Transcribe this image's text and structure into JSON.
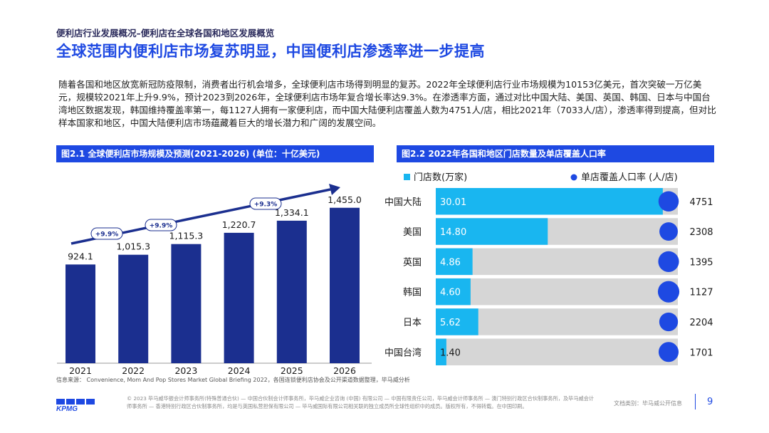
{
  "header": {
    "breadcrumb": "便利店行业发展概况–便利店在全球各国和地区发展概览",
    "title": "全球范围内便利店市场复苏明显，中国便利店渗透率进一步提高"
  },
  "intro": {
    "text": "随着各国和地区放宽新冠防疫限制，消费者出行机会增多，全球便利店市场得到明显的复苏。2022年全球便利店行业市场规模为10153亿美元，首次突破一万亿美元，规模较2021年上升9.9%，预计2023到2026年，全球便利店市场年复合增长率达9.3%。在渗透率方面，通过对比中国大陆、美国、英国、韩国、日本与中国台湾地区数据发现，韩国维持覆盖率第一，每1127人拥有一家便利店，而中国大陆便利店覆盖人数为4751人/店，相比2021年（7033人/店），渗透率得到提高，但对比样本国家和地区，中国大陆便利店市场蕴藏着巨大的增长潜力和广阔的发展空间。"
  },
  "chart_data": [
    {
      "type": "bar",
      "title": "图2.1 全球便利店市场规模及预测(2021-2026) (单位：十亿美元)",
      "categories": [
        "2021",
        "2022",
        "2023",
        "2024",
        "2025",
        "2026"
      ],
      "values": [
        924.1,
        1015.3,
        1115.3,
        1220.7,
        1334.1,
        1455.0
      ],
      "value_labels": [
        "924.1",
        "1,015.3",
        "1,115.3",
        "1,220.7",
        "1,334.1",
        "1,455.0"
      ],
      "growth_labels": [
        "+9.9%",
        "+9.9%",
        "+9.3%"
      ],
      "xlabel": "",
      "ylabel": "",
      "ylim": [
        0,
        1500
      ],
      "colors": {
        "bar": "#1b2f8f",
        "arrow": "#1b2f8f"
      }
    },
    {
      "type": "bar",
      "orientation": "horizontal",
      "title": "图2.2 2022年各国和地区门店数量及单店覆盖人口率",
      "categories": [
        "中国大陆",
        "美国",
        "英国",
        "韩国",
        "日本",
        "中国台湾"
      ],
      "series": [
        {
          "name": "门店数(万家)",
          "values": [
            30.01,
            14.8,
            4.86,
            4.6,
            5.62,
            1.4
          ],
          "labels": [
            "30.01",
            "14.80",
            "4.86",
            "4.60",
            "5.62",
            "1.40"
          ]
        },
        {
          "name": "单店覆盖人口率 (人/店)",
          "values": [
            4751,
            2308,
            1395,
            1127,
            2204,
            1701
          ],
          "labels": [
            "4751",
            "2308",
            "1395",
            "1127",
            "2204",
            "1701"
          ]
        }
      ],
      "xlim": [
        0,
        32
      ],
      "colors": {
        "stores": "#19b6f0",
        "track": "#d6d6d6",
        "coverage": "#1e49e2"
      }
    }
  ],
  "source": {
    "text": "信息来源： Convenience, Mom And Pop Stores Market Global Briefing 2022，各国连锁便利店协会及公开渠道数据整理，毕马威分析"
  },
  "footer": {
    "logo_text": "KPMG",
    "legal": "© 2023 毕马威华振会计师事务所(特殊普通合伙) — 中国合伙制会计师事务所，毕马威企业咨询 (中国) 有限公司 — 中国有限责任公司，毕马威会计师事务所 — 澳门特别行政区合伙制事务所，及毕马威会计师事务所 — 香港特别行政区合伙制事务所，均是与英国私营担保有限公司 — 毕马威国际有限公司相关联的独立成员所全球性组织中的成员。版权所有，不得转载。在中国印刷。",
    "classification": "文档类别：毕马威公开信息",
    "page_number": "9"
  }
}
